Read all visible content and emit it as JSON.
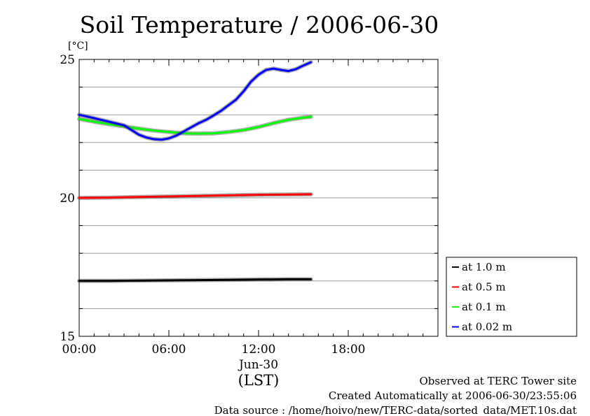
{
  "chart_data": {
    "type": "line",
    "title": "Soil Temperature / 2006-06-30",
    "unit_label": "[°C]",
    "xlabel_date": "Jun-30",
    "xlabel": "(LST)",
    "xlim": [
      0,
      24
    ],
    "ylim": [
      15,
      25
    ],
    "yticks": [
      15,
      20,
      25
    ],
    "y_minor_ticks": [
      16,
      17,
      18,
      19,
      21,
      22,
      23,
      24
    ],
    "xticks": [
      {
        "value": 0,
        "label": "00:00"
      },
      {
        "value": 6,
        "label": "06:00"
      },
      {
        "value": 12,
        "label": "12:00"
      },
      {
        "value": 18,
        "label": "18:00"
      }
    ],
    "grid": true,
    "legend": "bottom-right",
    "series": [
      {
        "name": "at 1.0 m",
        "color": "#000000",
        "x": [
          0,
          2,
          4,
          6,
          8,
          10,
          12,
          14,
          15.5
        ],
        "y": [
          17.0,
          17.0,
          17.01,
          17.02,
          17.03,
          17.04,
          17.05,
          17.06,
          17.06
        ]
      },
      {
        "name": "at 0.5 m",
        "color": "#ff0000",
        "x": [
          0,
          2,
          4,
          6,
          8,
          10,
          12,
          14,
          15.5
        ],
        "y": [
          20.0,
          20.01,
          20.03,
          20.05,
          20.07,
          20.09,
          20.11,
          20.12,
          20.13
        ]
      },
      {
        "name": "at 0.1 m",
        "color": "#00ff00",
        "x": [
          0,
          1,
          2,
          3,
          4,
          5,
          6,
          7,
          8,
          9,
          10,
          11,
          12,
          13,
          14,
          15,
          15.5
        ],
        "y": [
          22.85,
          22.75,
          22.66,
          22.58,
          22.5,
          22.43,
          22.38,
          22.33,
          22.32,
          22.33,
          22.38,
          22.45,
          22.56,
          22.7,
          22.82,
          22.9,
          22.93
        ]
      },
      {
        "name": "at 0.02 m",
        "color": "#0000ff",
        "x": [
          0,
          1,
          2,
          3,
          3.5,
          4,
          4.5,
          5,
          5.5,
          6,
          6.5,
          7,
          7.5,
          8,
          8.5,
          9,
          9.5,
          10,
          10.5,
          11,
          11.5,
          12,
          12.5,
          13,
          13.5,
          14,
          14.5,
          15,
          15.5
        ],
        "y": [
          23.0,
          22.88,
          22.75,
          22.62,
          22.45,
          22.28,
          22.18,
          22.12,
          22.1,
          22.15,
          22.25,
          22.4,
          22.55,
          22.7,
          22.82,
          22.98,
          23.15,
          23.35,
          23.55,
          23.85,
          24.2,
          24.45,
          24.62,
          24.67,
          24.62,
          24.58,
          24.65,
          24.78,
          24.9
        ]
      }
    ]
  },
  "footer": {
    "line1": "Observed at TERC Tower site",
    "line2": "Created Automatically at 2006-06-30/23:55:06",
    "line3": "Data source : /home/hoivo/new/TERC-data/sorted_data/MET.10s.dat"
  }
}
